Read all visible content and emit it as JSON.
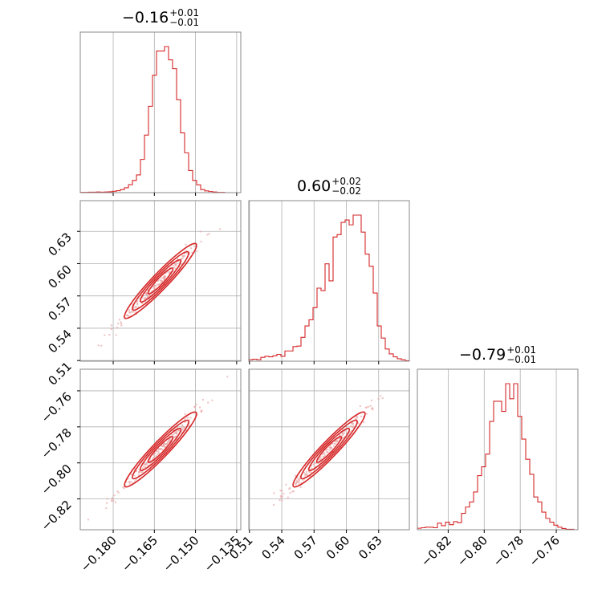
{
  "chart_data": {
    "type": "corner",
    "parameters": [
      {
        "title_value": "−0.16",
        "title_plus": "+0.01",
        "title_minus": "−0.01",
        "range": [
          -0.192,
          -0.1335
        ],
        "ticks": [
          -0.18,
          -0.165,
          -0.15,
          -0.135
        ],
        "tick_labels": [
          "−0.180",
          "−0.165",
          "−0.150",
          "−0.135"
        ],
        "hist": [
          1,
          1,
          2,
          2,
          3,
          2,
          3,
          4,
          6,
          9,
          14,
          22,
          36,
          55,
          80,
          150,
          260,
          390,
          530,
          640,
          640,
          660,
          600,
          560,
          420,
          270,
          180,
          100,
          55,
          35,
          14,
          8,
          5,
          3,
          1,
          1,
          0,
          0,
          0,
          0
        ]
      },
      {
        "title_value": "0.60",
        "title_plus": "+0.02",
        "title_minus": "−0.02",
        "range": [
          0.5094,
          0.6585
        ],
        "ticks": [
          0.51,
          0.54,
          0.57,
          0.6,
          0.63
        ],
        "tick_labels": [
          "0.51",
          "0.54",
          "0.57",
          "0.60",
          "0.63"
        ],
        "hist": [
          6,
          8,
          6,
          16,
          20,
          18,
          22,
          28,
          20,
          42,
          42,
          60,
          62,
          98,
          145,
          170,
          220,
          300,
          290,
          400,
          330,
          510,
          520,
          570,
          580,
          560,
          600,
          600,
          530,
          440,
          390,
          280,
          145,
          95,
          50,
          30,
          18,
          10,
          6,
          2
        ]
      },
      {
        "title_value": "−0.79",
        "title_plus": "+0.01",
        "title_minus": "−0.01",
        "range": [
          -0.8371,
          -0.748
        ],
        "ticks": [
          -0.82,
          -0.8,
          -0.78,
          -0.76
        ],
        "tick_labels": [
          "−0.82",
          "−0.80",
          "−0.78",
          "−0.76"
        ],
        "hist": [
          6,
          8,
          10,
          10,
          8,
          26,
          16,
          30,
          20,
          32,
          28,
          65,
          90,
          110,
          150,
          215,
          250,
          300,
          430,
          510,
          510,
          470,
          580,
          520,
          580,
          450,
          360,
          280,
          220,
          130,
          110,
          70,
          45,
          30,
          18,
          10,
          5,
          2,
          2,
          0
        ]
      }
    ],
    "correlation": "positive",
    "color": "#d62728",
    "grid": true
  }
}
